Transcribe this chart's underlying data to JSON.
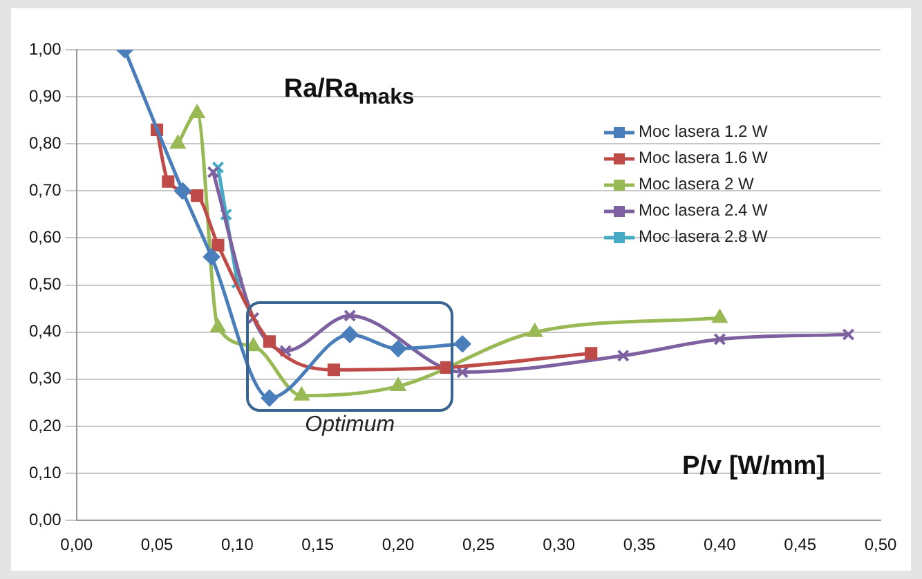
{
  "chart_data": {
    "type": "line",
    "title": "Ra/Ra$_{maks}$",
    "xlabel": "P/v [W/mm]",
    "xlim": [
      0,
      0.5
    ],
    "xticks": [
      {
        "value": 0,
        "label": "0,00"
      },
      {
        "value": 0.05,
        "label": "0,05"
      },
      {
        "value": 0.1,
        "label": "0,10"
      },
      {
        "value": 0.15,
        "label": "0,15"
      },
      {
        "value": 0.2,
        "label": "0,20"
      },
      {
        "value": 0.25,
        "label": "0,25"
      },
      {
        "value": 0.3,
        "label": "0,30"
      },
      {
        "value": 0.35,
        "label": "0,35"
      },
      {
        "value": 0.4,
        "label": "0,40"
      },
      {
        "value": 0.45,
        "label": "0,45"
      },
      {
        "value": 0.5,
        "label": "0,50"
      }
    ],
    "ylim": [
      0,
      1
    ],
    "yticks": [
      {
        "value": 0,
        "label": "0,00"
      },
      {
        "value": 0.1,
        "label": "0,10"
      },
      {
        "value": 0.2,
        "label": "0,20"
      },
      {
        "value": 0.3,
        "label": "0,30"
      },
      {
        "value": 0.4,
        "label": "0,40"
      },
      {
        "value": 0.5,
        "label": "0,50"
      },
      {
        "value": 0.6,
        "label": "0,60"
      },
      {
        "value": 0.7,
        "label": "0,70"
      },
      {
        "value": 0.8,
        "label": "0,80"
      },
      {
        "value": 0.9,
        "label": "0,90"
      },
      {
        "value": 1,
        "label": "1,00"
      }
    ],
    "grid": "y",
    "legend": "top right",
    "line_style": "solid",
    "annotations": [
      "Optimum"
    ],
    "series": [
      {
        "name": "Moc lasera 1.2 W",
        "color": "#4a7ebb",
        "marker": "diamond",
        "x": [
          0.03,
          0.066,
          0.084,
          0.12,
          0.17,
          0.2,
          0.24
        ],
        "values": [
          1.0,
          0.7,
          0.56,
          0.26,
          0.395,
          0.365,
          0.375
        ]
      },
      {
        "name": "Moc lasera 1.6 W",
        "color": "#be4b48",
        "marker": "square",
        "x": [
          0.05,
          0.057,
          0.075,
          0.088,
          0.12,
          0.16,
          0.23,
          0.32
        ],
        "values": [
          0.83,
          0.72,
          0.69,
          0.585,
          0.38,
          0.32,
          0.325,
          0.355
        ]
      },
      {
        "name": "Moc lasera 2 W",
        "color": "#98b954",
        "marker": "triangle",
        "x": [
          0.063,
          0.075,
          0.088,
          0.11,
          0.14,
          0.2,
          0.285,
          0.4
        ],
        "values": [
          0.8,
          0.865,
          0.41,
          0.37,
          0.265,
          0.285,
          0.4,
          0.43
        ]
      },
      {
        "name": "Moc lasera 2.4 W",
        "color": "#7d60a0",
        "marker": "cross",
        "x": [
          0.085,
          0.11,
          0.13,
          0.17,
          0.24,
          0.34,
          0.4,
          0.48
        ],
        "values": [
          0.74,
          0.43,
          0.36,
          0.435,
          0.315,
          0.35,
          0.385,
          0.395
        ]
      },
      {
        "name": "Moc lasera 2.8 W",
        "color": "#46aac5",
        "marker": "cross",
        "x": [
          0.088,
          0.093,
          0.1
        ],
        "values": [
          0.75,
          0.65,
          0.505
        ]
      }
    ]
  }
}
